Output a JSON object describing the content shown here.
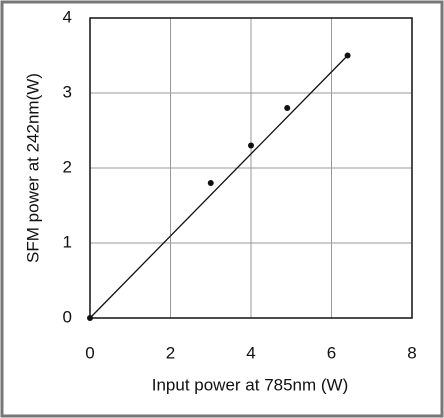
{
  "chart_data": {
    "type": "scatter",
    "xlabel": "Input power at 785nm (W)",
    "ylabel": "SFM power at 242nm(W)",
    "series": [
      {
        "color": "#111111",
        "mode": "markers",
        "x": [
          0,
          3,
          4,
          4.9,
          6.4
        ],
        "values": [
          0,
          1.8,
          2.3,
          2.8,
          3.5
        ]
      },
      {
        "color": "#111111",
        "mode": "line",
        "x": [
          0,
          6.4
        ],
        "values": [
          0,
          3.5
        ]
      }
    ],
    "xlim": [
      0,
      8
    ],
    "xticks": [
      0,
      2,
      4,
      6,
      8
    ],
    "ylim": [
      0,
      4
    ],
    "yticks": [
      0,
      1,
      2,
      3,
      4
    ],
    "grid": true
  }
}
